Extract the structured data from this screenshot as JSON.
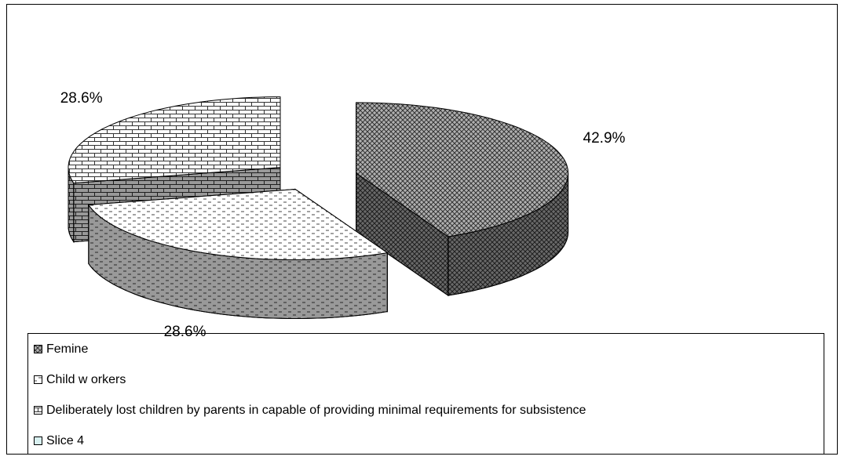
{
  "chart_data": {
    "type": "pie3d",
    "categories": [
      "Femine",
      "Child w orkers",
      "Deliberately lost children by parents in capable of providing minimal requirements for subsistence",
      "Slice 4"
    ],
    "values": [
      42.9,
      28.6,
      28.6,
      0
    ],
    "value_labels": [
      "42.9%",
      "28.6%",
      "28.6%",
      null
    ],
    "colors": [
      "#9a9a9a",
      "#ffffff",
      "#bdbdbd",
      "#d8f0f0"
    ],
    "legend": "bottom"
  }
}
